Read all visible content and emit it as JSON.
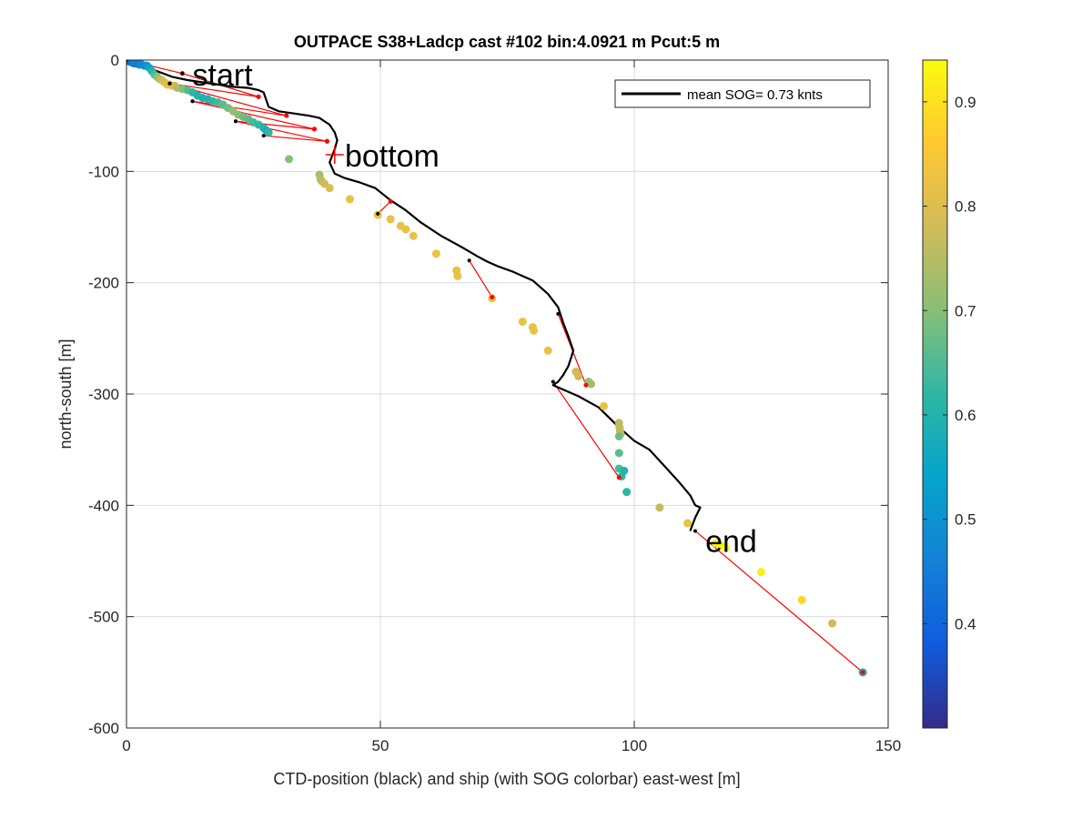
{
  "chart_data": {
    "type": "scatter",
    "title": "OUTPACE S38+Ladcp cast #102 bin:4.0921 m  Pcut:5 m",
    "xlabel": "CTD-position (black) and ship (with SOG colorbar) east-west [m]",
    "ylabel": "north-south [m]",
    "xlim": [
      0,
      150
    ],
    "ylim": [
      -600,
      0
    ],
    "xticks": [
      0,
      50,
      100,
      150
    ],
    "yticks": [
      -600,
      -500,
      -400,
      -300,
      -200,
      -100,
      0
    ],
    "grid": true,
    "legend": {
      "position": "top-right",
      "label": "mean SOG=  0.73 knts"
    },
    "colorbar": {
      "range": [
        0.3,
        0.94
      ],
      "ticks": [
        0.4,
        0.5,
        0.6,
        0.7,
        0.8,
        0.9
      ],
      "colormap": "parula"
    },
    "annotations": [
      {
        "text": "start",
        "x": 13,
        "y": -13
      },
      {
        "text": "bottom",
        "x": 43,
        "y": -86
      },
      {
        "text": "end",
        "x": 114,
        "y": -432
      }
    ],
    "bottom_marker": {
      "x": 41,
      "y": -85
    },
    "series": [
      {
        "kind": "ctd_track",
        "x": [
          0,
          3,
          6,
          9,
          12,
          15,
          18,
          21,
          24,
          26,
          27,
          28,
          30,
          33,
          36,
          38,
          40,
          41,
          41.5,
          41,
          40,
          41,
          43,
          46,
          49,
          52,
          55,
          58,
          62,
          66,
          69,
          71,
          73,
          76,
          80,
          83,
          85,
          86,
          87,
          88,
          87.5,
          87,
          86,
          85,
          84,
          86,
          89,
          93,
          97,
          100,
          103,
          106,
          109,
          111,
          112,
          113,
          112,
          111
        ],
        "y": [
          0,
          -5,
          -10,
          -15,
          -18,
          -20,
          -22,
          -24,
          -25,
          -27,
          -29,
          -42,
          -46,
          -48,
          -50,
          -52,
          -58,
          -65,
          -72,
          -80,
          -92,
          -102,
          -106,
          -110,
          -115,
          -126,
          -135,
          -146,
          -158,
          -168,
          -176,
          -181,
          -185,
          -190,
          -198,
          -210,
          -222,
          -236,
          -248,
          -261,
          -268,
          -275,
          -283,
          -289,
          -292,
          -296,
          -302,
          -312,
          -330,
          -342,
          -350,
          -365,
          -380,
          -391,
          -400,
          -402,
          -411,
          -423
        ]
      },
      {
        "kind": "ship_sog",
        "x": [
          0,
          0.5,
          1,
          1.5,
          2,
          2.5,
          3,
          3.5,
          4,
          4.5,
          5,
          5.5,
          6,
          6.5,
          7,
          7.5,
          8,
          8.5,
          9,
          9.5,
          10,
          11,
          12,
          13,
          14,
          15,
          16,
          17,
          18,
          19,
          20,
          21,
          22,
          23,
          24,
          25,
          26,
          27,
          27.5,
          28,
          32,
          38,
          38.2,
          38.5,
          39,
          40,
          44,
          49.5,
          52,
          54,
          55,
          56.5,
          61,
          65,
          65.2,
          72,
          78,
          80,
          80.2,
          83,
          88.5,
          89,
          91,
          91.5,
          94,
          97,
          97.1,
          97.2,
          97.3,
          97,
          97,
          97,
          97.5,
          98,
          98.5,
          105,
          110.5,
          116,
          117,
          118,
          125,
          133,
          139,
          145
        ],
        "y": [
          0,
          -1,
          -2,
          -3,
          -3,
          -4,
          -4,
          -5,
          -5,
          -7,
          -10,
          -13,
          -15,
          -17,
          -18,
          -20,
          -22,
          -22,
          -23,
          -23,
          -25,
          -26,
          -27,
          -29,
          -32,
          -34,
          -35,
          -37,
          -38,
          -40,
          -43,
          -46,
          -49,
          -51,
          -53,
          -56,
          -58,
          -61,
          -63,
          -65,
          -89,
          -103,
          -107,
          -109,
          -111,
          -115,
          -125,
          -139,
          -143,
          -149,
          -152,
          -158,
          -174,
          -189,
          -194,
          -214,
          -235,
          -240,
          -243,
          -261,
          -280,
          -284,
          -289,
          -291,
          -311,
          -326,
          -330,
          -333,
          -336,
          -338,
          -353,
          -367,
          -374,
          -369,
          -388,
          -402,
          -416,
          -434,
          -436,
          -438,
          -460,
          -485,
          -506,
          -550
        ],
        "sog": [
          0.3,
          0.36,
          0.42,
          0.45,
          0.45,
          0.45,
          0.48,
          0.48,
          0.5,
          0.55,
          0.6,
          0.65,
          0.7,
          0.75,
          0.78,
          0.8,
          0.82,
          0.82,
          0.8,
          0.78,
          0.75,
          0.7,
          0.66,
          0.62,
          0.6,
          0.58,
          0.6,
          0.62,
          0.64,
          0.66,
          0.68,
          0.72,
          0.7,
          0.68,
          0.66,
          0.64,
          0.62,
          0.6,
          0.58,
          0.62,
          0.7,
          0.74,
          0.76,
          0.76,
          0.78,
          0.8,
          0.82,
          0.82,
          0.82,
          0.82,
          0.82,
          0.82,
          0.82,
          0.82,
          0.82,
          0.82,
          0.82,
          0.82,
          0.82,
          0.82,
          0.78,
          0.78,
          0.72,
          0.72,
          0.82,
          0.76,
          0.76,
          0.76,
          0.76,
          0.68,
          0.66,
          0.64,
          0.62,
          0.6,
          0.62,
          0.76,
          0.82,
          0.92,
          0.92,
          0.94,
          0.92,
          0.88,
          0.78,
          0.6
        ]
      },
      {
        "kind": "connectors",
        "pairs": [
          [
            0,
            0,
            11,
            -12
          ],
          [
            11,
            -12,
            26,
            -33
          ],
          [
            8.5,
            -21,
            26,
            -33
          ],
          [
            8.5,
            -21,
            31.5,
            -50
          ],
          [
            13,
            -37,
            31.5,
            -50
          ],
          [
            13,
            -37,
            37,
            -62
          ],
          [
            21.5,
            -55,
            37,
            -62
          ],
          [
            21.5,
            -55,
            39.5,
            -73
          ],
          [
            27,
            -68,
            39.5,
            -73
          ],
          [
            49.5,
            -138,
            52,
            -127
          ],
          [
            67.5,
            -180,
            72,
            -213
          ],
          [
            85,
            -228,
            90.5,
            -292
          ],
          [
            84,
            -289,
            97,
            -375
          ],
          [
            112,
            -423,
            145,
            -550
          ]
        ]
      }
    ]
  }
}
